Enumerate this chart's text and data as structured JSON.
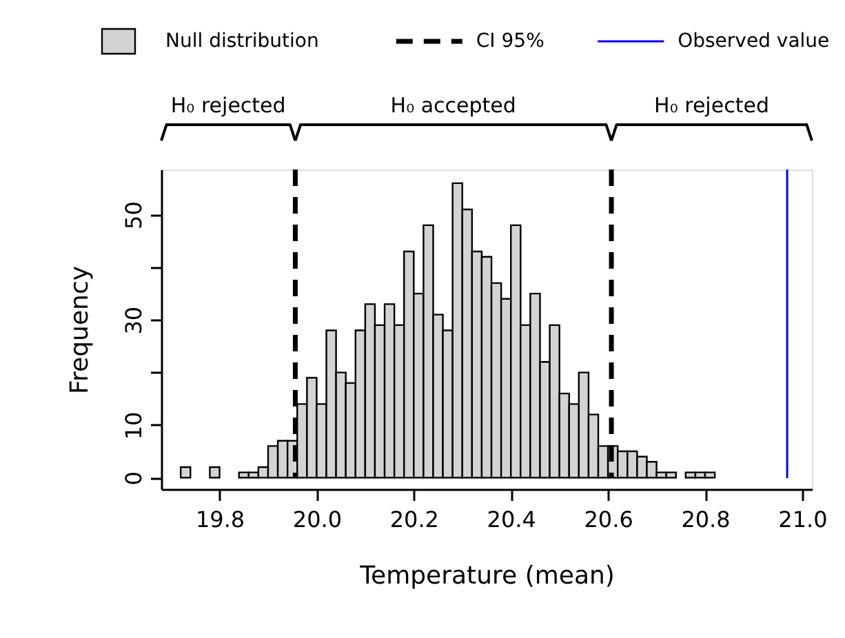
{
  "chart_data": {
    "type": "histogram",
    "xlabel": "Temperature (mean)",
    "ylabel": "Frequency",
    "bins": [
      19.72,
      19.74,
      19.76,
      19.78,
      19.8,
      19.82,
      19.84,
      19.86,
      19.88,
      19.9,
      19.92,
      19.94,
      19.96,
      19.98,
      20.0,
      20.02,
      20.04,
      20.06,
      20.08,
      20.1,
      20.12,
      20.14,
      20.16,
      20.18,
      20.2,
      20.22,
      20.24,
      20.26,
      20.28,
      20.3,
      20.32,
      20.34,
      20.36,
      20.38,
      20.4,
      20.42,
      20.44,
      20.46,
      20.48,
      20.5,
      20.52,
      20.54,
      20.56,
      20.58,
      20.6,
      20.62,
      20.64,
      20.66,
      20.68,
      20.7,
      20.72,
      20.74,
      20.76,
      20.78,
      20.8,
      20.82
    ],
    "series": [
      {
        "name": "Null distribution",
        "color": "#d3d3d3",
        "values": [
          2,
          0,
          0,
          2,
          0,
          0,
          1,
          1,
          2,
          6,
          7,
          7,
          14,
          19,
          14,
          28,
          20,
          18,
          28,
          33,
          29,
          33,
          29,
          43,
          35,
          48,
          31,
          28,
          56,
          51,
          43,
          42,
          37,
          34,
          48,
          29,
          35,
          22,
          29,
          16,
          14,
          20,
          12,
          6,
          6,
          5,
          5,
          4,
          3,
          1,
          1,
          0,
          1,
          1,
          1
        ]
      }
    ],
    "ref_lines": [
      {
        "axis": "x",
        "value": 19.956,
        "label": "CI 95%",
        "color": "#000000",
        "line_style": "dashed"
      },
      {
        "axis": "x",
        "value": 20.607,
        "color": "#000000",
        "line_style": "dashed"
      },
      {
        "axis": "x",
        "value": 20.969,
        "label": "Observed value",
        "color": "#0000ff",
        "line_style": "solid"
      }
    ],
    "annotations": [
      "H₀ rejected",
      "H₀ accepted",
      "H₀ rejected"
    ],
    "xlim": [
      19.68,
      21.02
    ],
    "xticks": [
      19.8,
      {
        "value": 20.0,
        "label": "20.0"
      },
      20.2,
      20.4,
      20.6,
      20.8,
      {
        "value": 21.0,
        "label": "21.0"
      }
    ],
    "ylim": [
      -2.2,
      58.6
    ],
    "yticks": [
      0,
      10,
      {
        "value": 20,
        "label": null
      },
      30,
      {
        "value": 40,
        "label": null
      },
      50
    ],
    "grid": false,
    "legend": "top"
  }
}
